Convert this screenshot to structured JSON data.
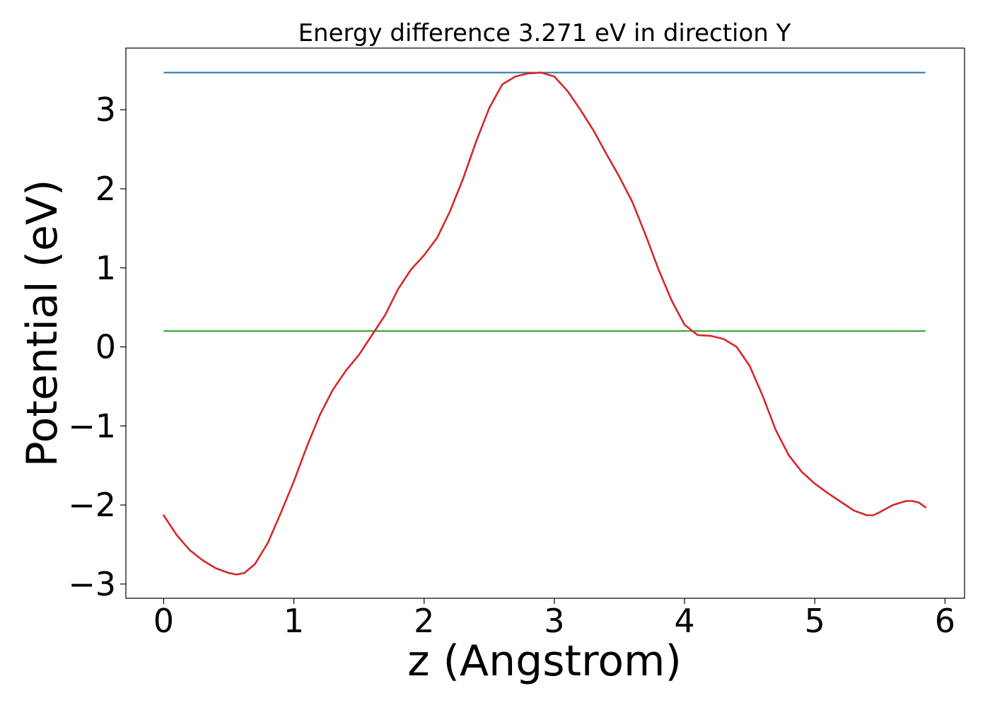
{
  "chart_data": {
    "type": "line",
    "title": "Energy difference 3.271 eV in direction Y",
    "xlabel": "z (Angstrom)",
    "ylabel": "Potential (eV)",
    "xlim": [
      -0.29,
      6.15
    ],
    "ylim": [
      -3.18,
      3.78
    ],
    "xticks": [
      0,
      1,
      2,
      3,
      4,
      5,
      6
    ],
    "xtick_labels": [
      "0",
      "1",
      "2",
      "3",
      "4",
      "5",
      "6"
    ],
    "yticks": [
      -3,
      -2,
      -1,
      0,
      1,
      2,
      3
    ],
    "ytick_labels": [
      "−3",
      "−2",
      "−1",
      "0",
      "1",
      "2",
      "3"
    ],
    "grid": false,
    "legend": "none",
    "series": [
      {
        "color": "#d62728",
        "x": [
          0.0,
          0.1,
          0.2,
          0.3,
          0.4,
          0.5,
          0.56,
          0.62,
          0.7,
          0.8,
          0.9,
          1.0,
          1.1,
          1.2,
          1.3,
          1.4,
          1.5,
          1.6,
          1.7,
          1.8,
          1.9,
          2.0,
          2.1,
          2.2,
          2.3,
          2.4,
          2.5,
          2.6,
          2.7,
          2.8,
          2.9,
          3.0,
          3.1,
          3.2,
          3.3,
          3.4,
          3.5,
          3.6,
          3.7,
          3.8,
          3.9,
          4.0,
          4.1,
          4.2,
          4.3,
          4.4,
          4.5,
          4.6,
          4.7,
          4.8,
          4.9,
          5.0,
          5.1,
          5.2,
          5.3,
          5.4,
          5.45,
          5.5,
          5.6,
          5.7,
          5.75,
          5.8,
          5.85
        ],
        "y": [
          -2.13,
          -2.38,
          -2.57,
          -2.7,
          -2.8,
          -2.86,
          -2.88,
          -2.86,
          -2.75,
          -2.48,
          -2.1,
          -1.7,
          -1.26,
          -0.86,
          -0.54,
          -0.3,
          -0.1,
          0.15,
          0.4,
          0.73,
          0.98,
          1.16,
          1.38,
          1.72,
          2.13,
          2.6,
          3.02,
          3.32,
          3.42,
          3.46,
          3.47,
          3.42,
          3.24,
          3.0,
          2.74,
          2.44,
          2.15,
          1.83,
          1.42,
          0.98,
          0.59,
          0.28,
          0.15,
          0.14,
          0.1,
          0.0,
          -0.24,
          -0.62,
          -1.05,
          -1.37,
          -1.58,
          -1.73,
          -1.85,
          -1.96,
          -2.07,
          -2.13,
          -2.13,
          -2.09,
          -2.0,
          -1.95,
          -1.95,
          -1.97,
          -2.03
        ]
      }
    ],
    "hlines": [
      {
        "y": 3.47,
        "x": [
          0.0,
          5.85
        ],
        "color": "#1f77b4"
      },
      {
        "y": 0.2,
        "x": [
          0.0,
          5.85
        ],
        "color": "#2ca02c"
      }
    ]
  }
}
